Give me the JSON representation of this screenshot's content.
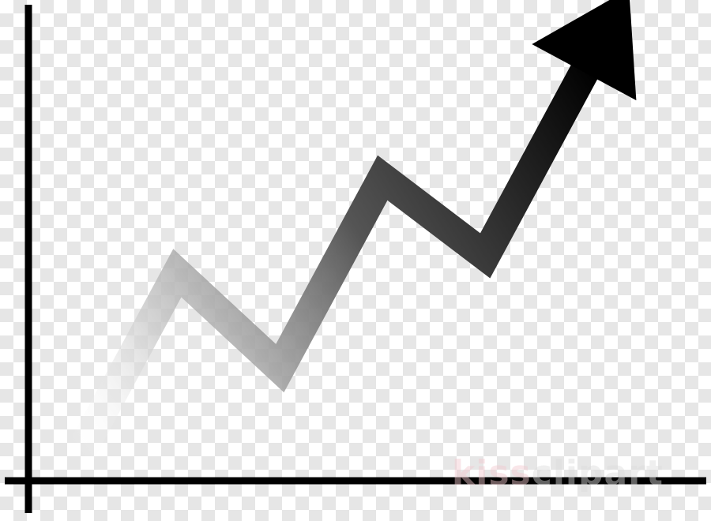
{
  "chart_data": {
    "type": "line",
    "title": "",
    "xlabel": "",
    "ylabel": "",
    "x": [
      0,
      1,
      2,
      3,
      4,
      5
    ],
    "series": [
      {
        "values": [
          0,
          2.2,
          1.1,
          3.3,
          2.4,
          4.6
        ]
      }
    ],
    "xlim": [
      -0.45,
      6.2
    ],
    "ylim": [
      -0.2,
      5.3
    ],
    "grid": false,
    "legend": "none",
    "arrow_head": true
  },
  "colors": {
    "axis": "#000000",
    "line_start": "#ffffff",
    "line_end": "#000000"
  },
  "watermark": {
    "part1": "kiss",
    "part2": "clipart"
  }
}
